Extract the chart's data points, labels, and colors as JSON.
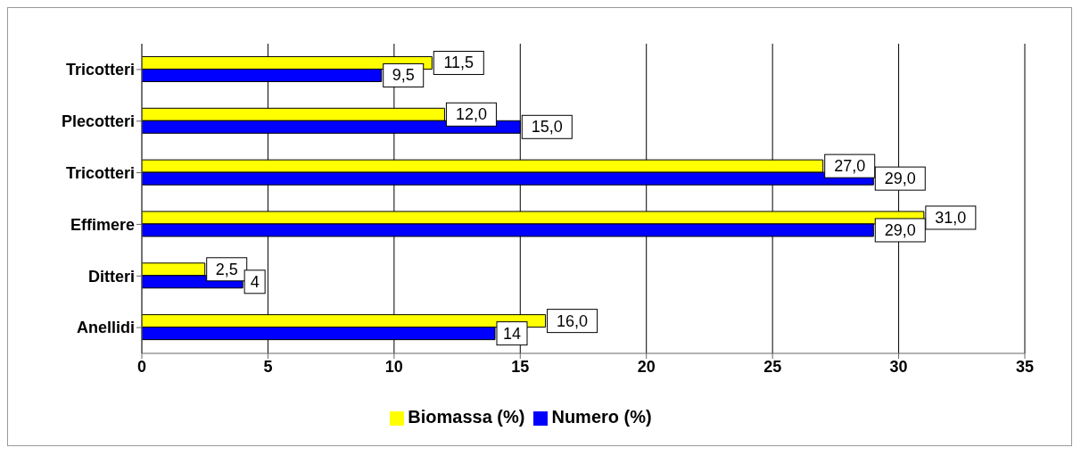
{
  "chart_data": {
    "type": "bar",
    "orientation": "horizontal",
    "categories": [
      "Tricotteri",
      "Plecotteri",
      "Tricotteri",
      "Effimere",
      "Ditteri",
      "Anellidi"
    ],
    "series": [
      {
        "name": "Biomassa (%)",
        "color": "#ffff00",
        "values": [
          11.5,
          12.0,
          27.0,
          31.0,
          2.5,
          16.0
        ],
        "value_labels": [
          "11,5",
          "12,0",
          "27,0",
          "31,0",
          "2,5",
          "16,0"
        ]
      },
      {
        "name": "Numero (%)",
        "color": "#0000ff",
        "values": [
          9.5,
          15.0,
          29.0,
          29.0,
          4,
          14
        ],
        "value_labels": [
          "9,5",
          "15,0",
          "29,0",
          "29,0",
          "4",
          "14"
        ]
      }
    ],
    "xlim": [
      0,
      35
    ],
    "xticks": [
      0,
      5,
      10,
      15,
      20,
      25,
      30,
      35
    ],
    "grid": "x",
    "legend": "bottom"
  }
}
